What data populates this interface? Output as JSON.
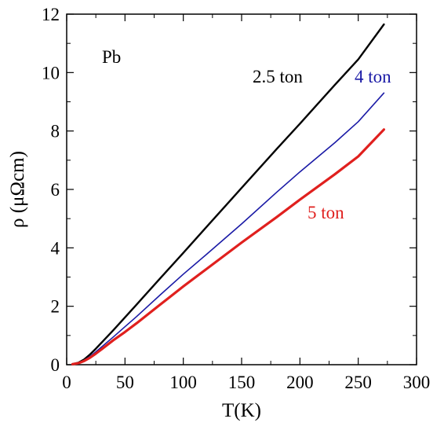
{
  "chart_data": {
    "type": "line",
    "title": "",
    "xlabel": "T(K)",
    "ylabel": "ρ (μΩcm)",
    "xlim": [
      0,
      300
    ],
    "ylim": [
      0,
      12
    ],
    "xticks": [
      0,
      50,
      100,
      150,
      200,
      250,
      300
    ],
    "yticks": [
      0,
      2,
      4,
      6,
      8,
      10,
      12
    ],
    "grid": false,
    "legend": "none",
    "annotations": [
      {
        "text": "Pb",
        "color": "#000000"
      },
      {
        "text": "2.5 ton",
        "color": "#000000"
      },
      {
        "text": "4 ton",
        "color": "#1a1aa6"
      },
      {
        "text": "5 ton",
        "color": "#e0201e"
      }
    ],
    "series": [
      {
        "name": "2.5 ton",
        "color": "#000000",
        "x": [
          5,
          10,
          15,
          20,
          25,
          30,
          40,
          50,
          60,
          80,
          100,
          120,
          150,
          180,
          200,
          230,
          250,
          272
        ],
        "y": [
          0.02,
          0.07,
          0.18,
          0.35,
          0.55,
          0.76,
          1.18,
          1.62,
          2.06,
          2.95,
          3.83,
          4.72,
          6.05,
          7.38,
          8.25,
          9.58,
          10.45,
          11.65
        ]
      },
      {
        "name": "4 ton",
        "color": "#1a1aa6",
        "x": [
          5,
          10,
          15,
          20,
          25,
          30,
          40,
          50,
          60,
          80,
          100,
          120,
          150,
          180,
          200,
          230,
          250,
          272
        ],
        "y": [
          0.02,
          0.06,
          0.15,
          0.28,
          0.44,
          0.61,
          0.95,
          1.3,
          1.65,
          2.38,
          3.1,
          3.78,
          4.82,
          5.9,
          6.6,
          7.6,
          8.32,
          9.3
        ]
      },
      {
        "name": "5 ton",
        "color": "#e0201e",
        "x": [
          5,
          10,
          15,
          20,
          25,
          30,
          40,
          50,
          60,
          80,
          100,
          120,
          150,
          180,
          200,
          230,
          250,
          272
        ],
        "y": [
          0.02,
          0.05,
          0.13,
          0.24,
          0.38,
          0.53,
          0.84,
          1.12,
          1.42,
          2.05,
          2.68,
          3.28,
          4.18,
          5.05,
          5.65,
          6.52,
          7.13,
          8.05
        ]
      }
    ]
  }
}
